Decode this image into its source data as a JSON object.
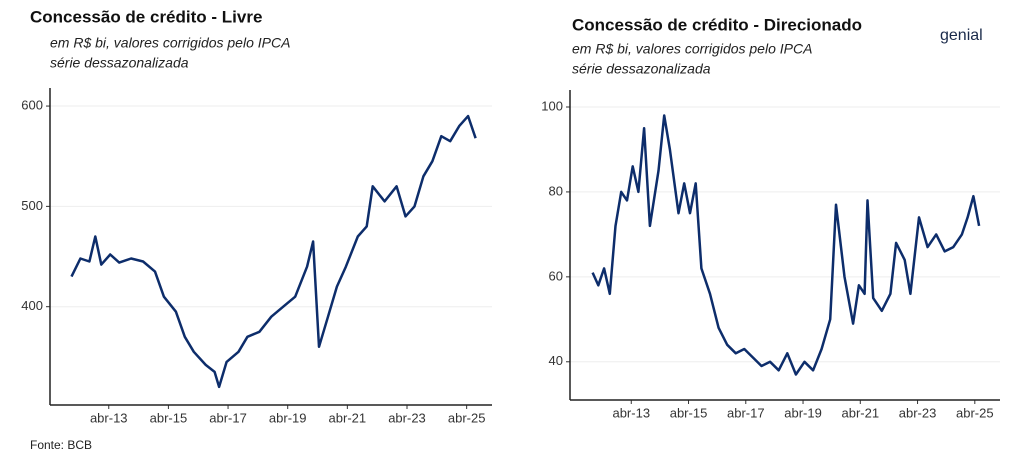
{
  "chart_data": [
    {
      "type": "line",
      "title": "Concessão de crédito - Livre",
      "subtitle": [
        "em R$ bi, valores corrigidos pelo IPCA",
        "série dessazonalizada"
      ],
      "x": [
        2012.0,
        2012.3,
        2012.6,
        2012.8,
        2013.0,
        2013.3,
        2013.6,
        2014.0,
        2014.4,
        2014.8,
        2015.1,
        2015.5,
        2015.8,
        2016.1,
        2016.5,
        2016.8,
        2016.95,
        2017.2,
        2017.6,
        2017.9,
        2018.3,
        2018.7,
        2019.1,
        2019.5,
        2019.9,
        2020.1,
        2020.3,
        2020.6,
        2020.9,
        2021.2,
        2021.6,
        2021.9,
        2022.1,
        2022.5,
        2022.9,
        2023.2,
        2023.5,
        2023.8,
        2024.1,
        2024.4,
        2024.7,
        2025.0,
        2025.3,
        2025.55
      ],
      "series": [
        {
          "name": "Livre",
          "color": "#0d2d6b",
          "values": [
            430,
            448,
            445,
            470,
            442,
            452,
            444,
            448,
            445,
            435,
            410,
            395,
            370,
            355,
            342,
            335,
            320,
            345,
            355,
            370,
            375,
            390,
            400,
            410,
            440,
            465,
            360,
            390,
            420,
            440,
            470,
            480,
            520,
            505,
            520,
            490,
            500,
            530,
            545,
            570,
            565,
            580,
            590,
            568
          ]
        }
      ],
      "xlim": [
        2011.28,
        2026.1
      ],
      "xticks": [
        {
          "value": 2013.25,
          "label": "abr-13"
        },
        {
          "value": 2015.25,
          "label": "abr-15"
        },
        {
          "value": 2017.25,
          "label": "abr-17"
        },
        {
          "value": 2019.25,
          "label": "abr-19"
        },
        {
          "value": 2021.25,
          "label": "abr-21"
        },
        {
          "value": 2023.25,
          "label": "abr-23"
        },
        {
          "value": 2025.25,
          "label": "abr-25"
        }
      ],
      "ylim": [
        302,
        618
      ],
      "yticks": [
        400,
        500,
        600
      ],
      "grid": true
    },
    {
      "type": "line",
      "title": "Concessão de crédito - Direcionado",
      "subtitle": [
        "em R$ bi, valores corrigidos pelo IPCA",
        "série dessazonalizada"
      ],
      "x": [
        2011.9,
        2012.1,
        2012.3,
        2012.5,
        2012.7,
        2012.9,
        2013.1,
        2013.3,
        2013.5,
        2013.7,
        2013.9,
        2014.2,
        2014.4,
        2014.6,
        2014.9,
        2015.1,
        2015.3,
        2015.5,
        2015.7,
        2016.0,
        2016.3,
        2016.6,
        2016.9,
        2017.2,
        2017.5,
        2017.8,
        2018.1,
        2018.4,
        2018.7,
        2019.0,
        2019.3,
        2019.6,
        2019.9,
        2020.2,
        2020.4,
        2020.7,
        2021.0,
        2021.2,
        2021.4,
        2021.5,
        2021.7,
        2022.0,
        2022.3,
        2022.5,
        2022.8,
        2023.0,
        2023.3,
        2023.6,
        2023.9,
        2024.2,
        2024.5,
        2024.8,
        2025.0,
        2025.2,
        2025.4
      ],
      "series": [
        {
          "name": "Direcionado",
          "color": "#0d2d6b",
          "values": [
            61,
            58,
            62,
            56,
            72,
            80,
            78,
            86,
            80,
            95,
            72,
            85,
            98,
            90,
            75,
            82,
            75,
            82,
            62,
            56,
            48,
            44,
            42,
            43,
            41,
            39,
            40,
            38,
            42,
            37,
            40,
            38,
            43,
            50,
            77,
            60,
            49,
            58,
            56,
            78,
            55,
            52,
            56,
            68,
            64,
            56,
            74,
            67,
            70,
            66,
            67,
            70,
            74,
            79,
            72
          ]
        }
      ],
      "xlim": [
        2011.11,
        2026.13
      ],
      "xticks": [
        {
          "value": 2013.25,
          "label": "abr-13"
        },
        {
          "value": 2015.25,
          "label": "abr-15"
        },
        {
          "value": 2017.25,
          "label": "abr-17"
        },
        {
          "value": 2019.25,
          "label": "abr-19"
        },
        {
          "value": 2021.25,
          "label": "abr-21"
        },
        {
          "value": 2023.25,
          "label": "abr-23"
        },
        {
          "value": 2025.25,
          "label": "abr-25"
        }
      ],
      "ylim": [
        31,
        104
      ],
      "yticks": [
        40,
        60,
        80,
        100
      ],
      "grid": true
    }
  ],
  "logo": "genial",
  "source": "Fonte: BCB"
}
